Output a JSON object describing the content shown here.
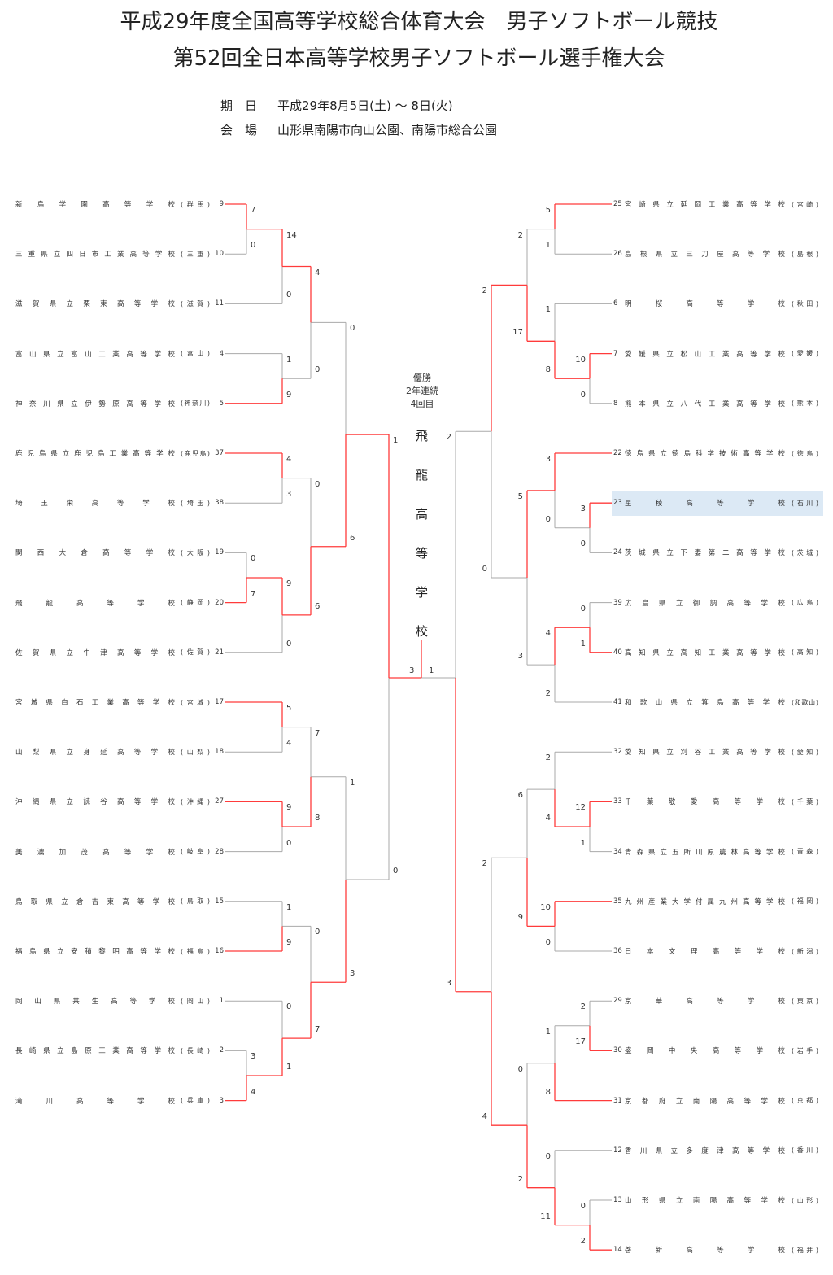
{
  "header": {
    "title_line1": "平成29年度全国高等学校総合体育大会　男子ソフトボール競技",
    "title_line2": "第52回全日本高等学校男子ソフトボール選手権大会",
    "date_label": "期　日",
    "date_value": "平成29年8月5日(土) ～ 8日(火)",
    "venue_label": "会　場",
    "venue_value": "山形県南陽市向山公園、南陽市総合公園"
  },
  "champion": {
    "caption": [
      "優勝",
      "2年連続",
      "4回目"
    ],
    "name": "飛龍高等学校"
  },
  "colors": {
    "winner_line": "#ff3b3b",
    "loser_line": "#aaaaaa",
    "highlight": "#dce9f5"
  },
  "left": {
    "teams": [
      {
        "seed": "9",
        "name": "新島学園高等学校",
        "pref": "(群馬)"
      },
      {
        "seed": "10",
        "name": "三重県立四日市工業高等学校",
        "pref": "(三重)"
      },
      {
        "seed": "11",
        "name": "滋賀県立栗東高等学校",
        "pref": "(滋賀)"
      },
      {
        "seed": "4",
        "name": "富山県立富山工業高等学校",
        "pref": "(富山)"
      },
      {
        "seed": "5",
        "name": "神奈川県立伊勢原高等学校",
        "pref": "(神奈川)"
      },
      {
        "seed": "37",
        "name": "鹿児島県立鹿児島工業高等学校",
        "pref": "(鹿児島)"
      },
      {
        "seed": "38",
        "name": "埼玉栄高等学校",
        "pref": "(埼玉)"
      },
      {
        "seed": "19",
        "name": "関西大倉高等学校",
        "pref": "(大阪)"
      },
      {
        "seed": "20",
        "name": "飛龍高等学校",
        "pref": "(静岡)"
      },
      {
        "seed": "21",
        "name": "佐賀県立牛津高等学校",
        "pref": "(佐賀)"
      },
      {
        "seed": "17",
        "name": "宮城県白石工業高等学校",
        "pref": "(宮城)"
      },
      {
        "seed": "18",
        "name": "山梨県立身延高等学校",
        "pref": "(山梨)"
      },
      {
        "seed": "27",
        "name": "沖縄県立読谷高等学校",
        "pref": "(沖縄)"
      },
      {
        "seed": "28",
        "name": "美濃加茂高等学校",
        "pref": "(岐阜)"
      },
      {
        "seed": "15",
        "name": "鳥取県立倉吉東高等学校",
        "pref": "(鳥取)"
      },
      {
        "seed": "16",
        "name": "福島県立安積黎明高等学校",
        "pref": "(福島)"
      },
      {
        "seed": "1",
        "name": "岡山県共生高等学校",
        "pref": "(岡山)"
      },
      {
        "seed": "2",
        "name": "長崎県立島原工業高等学校",
        "pref": "(長崎)"
      },
      {
        "seed": "3",
        "name": "滝川高等学校",
        "pref": "(兵庫)"
      }
    ],
    "scores": [
      [
        7,
        0
      ],
      [
        14,
        0
      ],
      [
        1,
        9
      ],
      [
        4,
        0
      ],
      [
        4,
        3
      ],
      [
        0,
        7
      ],
      [
        9,
        0
      ],
      [
        0,
        6
      ],
      [
        0,
        6
      ],
      [
        5,
        4
      ],
      [
        9,
        0
      ],
      [
        7,
        8
      ],
      [
        1,
        9
      ],
      [
        3,
        4
      ],
      [
        0,
        1
      ],
      [
        0,
        7
      ],
      [
        1,
        3
      ],
      [
        1,
        0
      ]
    ]
  },
  "right": {
    "teams": [
      {
        "seed": "25",
        "name": "宮崎県立延岡工業高等学校",
        "pref": "(宮崎)"
      },
      {
        "seed": "26",
        "name": "島根県立三刀屋高等学校",
        "pref": "(島根)"
      },
      {
        "seed": "6",
        "name": "明桜高等学校",
        "pref": "(秋田)"
      },
      {
        "seed": "7",
        "name": "愛媛県立松山工業高等学校",
        "pref": "(愛媛)"
      },
      {
        "seed": "8",
        "name": "熊本県立八代工業高等学校",
        "pref": "(熊本)"
      },
      {
        "seed": "22",
        "name": "徳島県立徳島科学技術高等学校",
        "pref": "(徳島)"
      },
      {
        "seed": "23",
        "name": "星稜高等学校",
        "pref": "(石川)"
      },
      {
        "seed": "24",
        "name": "茨城県立下妻第二高等学校",
        "pref": "(茨城)"
      },
      {
        "seed": "39",
        "name": "広島県立御調高等学校",
        "pref": "(広島)"
      },
      {
        "seed": "40",
        "name": "高知県立高知工業高等学校",
        "pref": "(高知)"
      },
      {
        "seed": "41",
        "name": "和歌山県立箕島高等学校",
        "pref": "(和歌山)"
      },
      {
        "seed": "32",
        "name": "愛知県立刈谷工業高等学校",
        "pref": "(愛知)"
      },
      {
        "seed": "33",
        "name": "千葉敬愛高等学校",
        "pref": "(千葉)"
      },
      {
        "seed": "34",
        "name": "青森県立五所川原農林高等学校",
        "pref": "(青森)"
      },
      {
        "seed": "35",
        "name": "九州産業大学付属九州高等学校",
        "pref": "(福岡)"
      },
      {
        "seed": "36",
        "name": "日本文理高等学校",
        "pref": "(新潟)"
      },
      {
        "seed": "29",
        "name": "京華高等学校",
        "pref": "(東京)"
      },
      {
        "seed": "30",
        "name": "盛岡中央高等学校",
        "pref": "(岩手)"
      },
      {
        "seed": "31",
        "name": "京都府立南陽高等学校",
        "pref": "(京都)"
      },
      {
        "seed": "12",
        "name": "香川県立多度津高等学校",
        "pref": "(香川)"
      },
      {
        "seed": "13",
        "name": "山形県立南陽高等学校",
        "pref": "(山形)"
      },
      {
        "seed": "14",
        "name": "啓新高等学校",
        "pref": "(福井)"
      }
    ],
    "highlighted_team_seed": "23",
    "scores": [
      [
        5,
        1
      ],
      [
        10,
        0
      ],
      [
        1,
        8
      ],
      [
        2,
        17
      ],
      [
        3,
        0
      ],
      [
        3,
        0
      ],
      [
        0,
        1
      ],
      [
        4,
        2
      ],
      [
        5,
        3
      ],
      [
        2,
        0
      ],
      [
        12,
        1
      ],
      [
        2,
        4
      ],
      [
        10,
        0
      ],
      [
        6,
        9
      ],
      [
        2,
        17
      ],
      [
        1,
        8
      ],
      [
        0,
        2
      ],
      [
        0,
        11
      ],
      [
        0,
        2
      ],
      [
        2,
        4
      ],
      [
        2,
        3
      ]
    ]
  },
  "final": {
    "left_score": 3,
    "right_score": 1
  }
}
